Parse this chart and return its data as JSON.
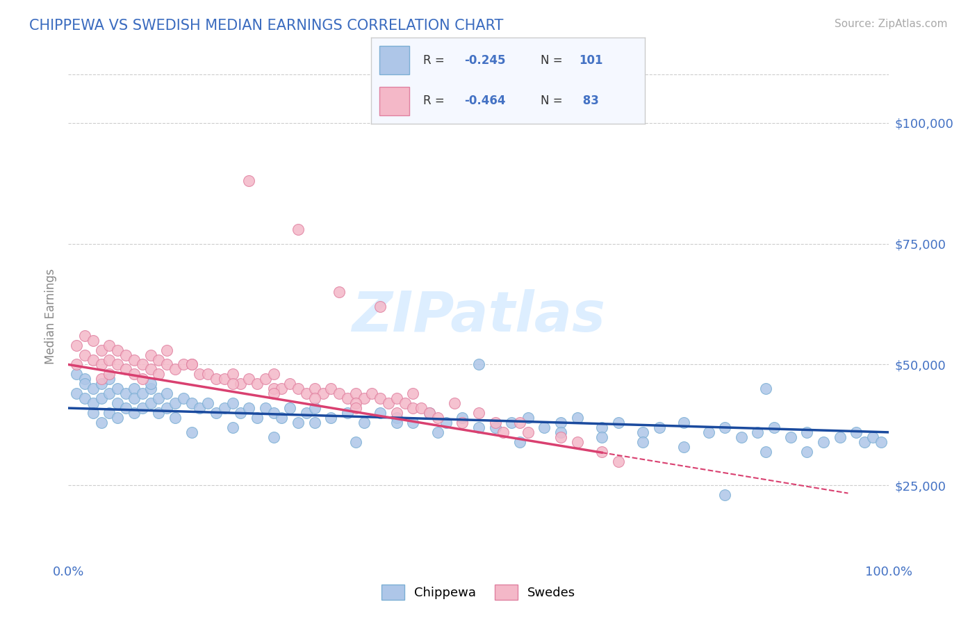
{
  "title": "CHIPPEWA VS SWEDISH MEDIAN EARNINGS CORRELATION CHART",
  "source_text": "Source: ZipAtlas.com",
  "ylabel": "Median Earnings",
  "x_tick_labels": [
    "0.0%",
    "100.0%"
  ],
  "y_tick_labels": [
    "$25,000",
    "$50,000",
    "$75,000",
    "$100,000"
  ],
  "y_tick_values": [
    25000,
    50000,
    75000,
    100000
  ],
  "xlim": [
    0,
    1
  ],
  "ylim": [
    10000,
    110000
  ],
  "title_color": "#3a6bbf",
  "title_fontsize": 16,
  "axis_label_color": "#888888",
  "tick_label_color": "#4472c4",
  "source_color": "#aaaaaa",
  "watermark_text": "ZIPatlas",
  "watermark_color": "#ddeeff",
  "chippewa_color": "#aec6e8",
  "chippewa_edge": "#7bafd4",
  "swedes_color": "#f4b8c8",
  "swedes_edge": "#e080a0",
  "chippewa_line_color": "#1a4a9e",
  "swedes_line_color": "#d94070",
  "legend_box_color": "#f5f8ff",
  "legend_border_color": "#cccccc",
  "R_chippewa": -0.245,
  "N_chippewa": 101,
  "R_swedes": -0.464,
  "N_swedes": 83,
  "chippewa_intercept": 41000,
  "chippewa_slope": -5000,
  "swedes_intercept": 50000,
  "swedes_slope": -28000,
  "chippewa_x": [
    0.01,
    0.01,
    0.02,
    0.02,
    0.02,
    0.03,
    0.03,
    0.03,
    0.04,
    0.04,
    0.04,
    0.05,
    0.05,
    0.05,
    0.06,
    0.06,
    0.06,
    0.07,
    0.07,
    0.08,
    0.08,
    0.08,
    0.09,
    0.09,
    0.1,
    0.1,
    0.11,
    0.11,
    0.12,
    0.12,
    0.13,
    0.13,
    0.14,
    0.15,
    0.16,
    0.17,
    0.18,
    0.19,
    0.2,
    0.21,
    0.22,
    0.23,
    0.24,
    0.25,
    0.26,
    0.27,
    0.28,
    0.29,
    0.3,
    0.32,
    0.34,
    0.36,
    0.38,
    0.4,
    0.42,
    0.44,
    0.46,
    0.48,
    0.5,
    0.52,
    0.54,
    0.56,
    0.58,
    0.6,
    0.62,
    0.65,
    0.67,
    0.7,
    0.72,
    0.75,
    0.78,
    0.8,
    0.82,
    0.84,
    0.86,
    0.88,
    0.9,
    0.92,
    0.94,
    0.96,
    0.97,
    0.98,
    0.99,
    0.15,
    0.25,
    0.35,
    0.45,
    0.55,
    0.65,
    0.75,
    0.85,
    0.5,
    0.3,
    0.6,
    0.7,
    0.4,
    0.2,
    0.8,
    0.9,
    0.1,
    0.85
  ],
  "chippewa_y": [
    48000,
    44000,
    47000,
    43000,
    46000,
    45000,
    42000,
    40000,
    46000,
    43000,
    38000,
    47000,
    44000,
    40000,
    45000,
    42000,
    39000,
    44000,
    41000,
    45000,
    43000,
    40000,
    44000,
    41000,
    45000,
    42000,
    43000,
    40000,
    44000,
    41000,
    42000,
    39000,
    43000,
    42000,
    41000,
    42000,
    40000,
    41000,
    42000,
    40000,
    41000,
    39000,
    41000,
    40000,
    39000,
    41000,
    38000,
    40000,
    41000,
    39000,
    40000,
    38000,
    40000,
    39000,
    38000,
    40000,
    38000,
    39000,
    50000,
    37000,
    38000,
    39000,
    37000,
    38000,
    39000,
    37000,
    38000,
    36000,
    37000,
    38000,
    36000,
    37000,
    35000,
    36000,
    37000,
    35000,
    36000,
    34000,
    35000,
    36000,
    34000,
    35000,
    34000,
    36000,
    35000,
    34000,
    36000,
    34000,
    35000,
    33000,
    32000,
    37000,
    38000,
    36000,
    34000,
    38000,
    37000,
    23000,
    32000,
    46000,
    45000
  ],
  "swedes_x": [
    0.01,
    0.01,
    0.02,
    0.02,
    0.03,
    0.03,
    0.04,
    0.04,
    0.04,
    0.05,
    0.05,
    0.05,
    0.06,
    0.06,
    0.07,
    0.07,
    0.08,
    0.08,
    0.09,
    0.09,
    0.1,
    0.1,
    0.11,
    0.11,
    0.12,
    0.12,
    0.13,
    0.14,
    0.15,
    0.16,
    0.17,
    0.18,
    0.19,
    0.2,
    0.21,
    0.22,
    0.23,
    0.24,
    0.25,
    0.25,
    0.26,
    0.27,
    0.28,
    0.29,
    0.3,
    0.31,
    0.32,
    0.33,
    0.34,
    0.35,
    0.36,
    0.37,
    0.38,
    0.39,
    0.4,
    0.41,
    0.42,
    0.43,
    0.44,
    0.22,
    0.28,
    0.33,
    0.38,
    0.42,
    0.47,
    0.52,
    0.56,
    0.6,
    0.65,
    0.5,
    0.55,
    0.62,
    0.67,
    0.35,
    0.4,
    0.3,
    0.45,
    0.2,
    0.25,
    0.35,
    0.15,
    0.53,
    0.48
  ],
  "swedes_y": [
    54000,
    50000,
    56000,
    52000,
    55000,
    51000,
    53000,
    50000,
    47000,
    54000,
    51000,
    48000,
    53000,
    50000,
    52000,
    49000,
    51000,
    48000,
    50000,
    47000,
    52000,
    49000,
    51000,
    48000,
    53000,
    50000,
    49000,
    50000,
    50000,
    48000,
    48000,
    47000,
    47000,
    48000,
    46000,
    47000,
    46000,
    47000,
    45000,
    48000,
    45000,
    46000,
    45000,
    44000,
    45000,
    44000,
    45000,
    44000,
    43000,
    44000,
    43000,
    44000,
    43000,
    42000,
    43000,
    42000,
    41000,
    41000,
    40000,
    88000,
    78000,
    65000,
    62000,
    44000,
    42000,
    38000,
    36000,
    35000,
    32000,
    40000,
    38000,
    34000,
    30000,
    42000,
    40000,
    43000,
    39000,
    46000,
    44000,
    41000,
    50000,
    36000,
    38000
  ]
}
